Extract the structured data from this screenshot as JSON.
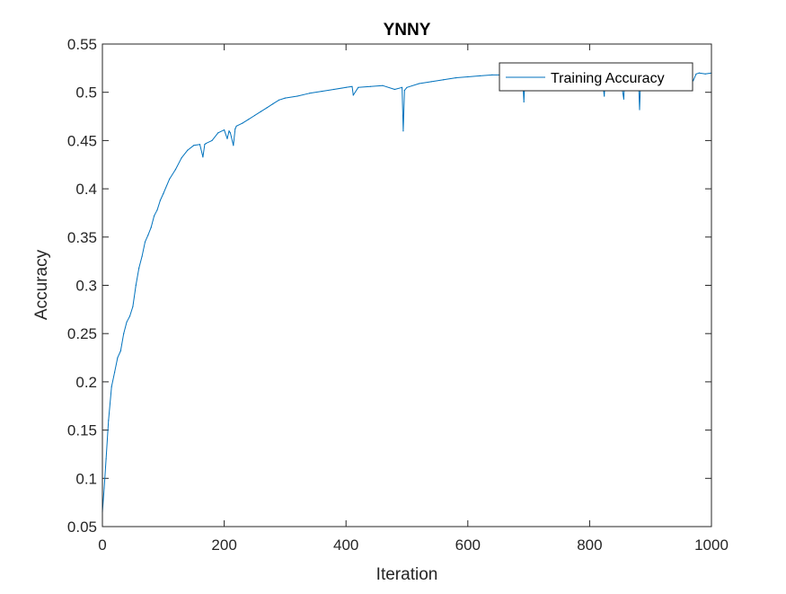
{
  "chart_data": {
    "type": "line",
    "title": "YNNY",
    "xlabel": "Iteration",
    "ylabel": "Accuracy",
    "xlim": [
      0,
      1000
    ],
    "ylim": [
      0.05,
      0.55
    ],
    "xticks": [
      0,
      200,
      400,
      600,
      800,
      1000
    ],
    "xtick_labels": [
      "0",
      "200",
      "400",
      "600",
      "800",
      "1000"
    ],
    "yticks": [
      0.05,
      0.1,
      0.15,
      0.2,
      0.25,
      0.3,
      0.35,
      0.4,
      0.45,
      0.5,
      0.55
    ],
    "ytick_labels": [
      "0.05",
      "0.1",
      "0.15",
      "0.2",
      "0.25",
      "0.3",
      "0.35",
      "0.4",
      "0.45",
      "0.5",
      "0.55"
    ],
    "grid": false,
    "legend_position": "top-right",
    "series": [
      {
        "name": "Training Accuracy",
        "color": "#0072BD",
        "x": [
          0,
          3,
          6,
          10,
          15,
          20,
          25,
          30,
          35,
          40,
          45,
          50,
          55,
          60,
          65,
          70,
          75,
          80,
          85,
          90,
          95,
          100,
          110,
          120,
          130,
          140,
          150,
          160,
          165,
          168,
          170,
          180,
          190,
          200,
          205,
          208,
          210,
          215,
          218,
          220,
          230,
          240,
          250,
          260,
          270,
          280,
          290,
          300,
          320,
          340,
          360,
          380,
          400,
          410,
          412,
          420,
          440,
          460,
          480,
          492,
          494,
          496,
          500,
          520,
          540,
          560,
          580,
          600,
          620,
          640,
          660,
          680,
          690,
          692,
          694,
          700,
          720,
          740,
          760,
          780,
          800,
          820,
          824,
          826,
          830,
          850,
          856,
          858,
          860,
          870,
          880,
          882,
          884,
          886,
          890,
          900,
          920,
          940,
          960,
          970,
          975,
          980,
          990,
          1000
        ],
        "values": [
          0.065,
          0.09,
          0.12,
          0.16,
          0.195,
          0.21,
          0.225,
          0.232,
          0.25,
          0.262,
          0.268,
          0.278,
          0.3,
          0.318,
          0.33,
          0.345,
          0.352,
          0.36,
          0.372,
          0.378,
          0.388,
          0.395,
          0.41,
          0.42,
          0.432,
          0.44,
          0.445,
          0.446,
          0.433,
          0.446,
          0.447,
          0.45,
          0.458,
          0.461,
          0.452,
          0.46,
          0.458,
          0.445,
          0.462,
          0.465,
          0.468,
          0.472,
          0.476,
          0.48,
          0.484,
          0.488,
          0.492,
          0.494,
          0.496,
          0.499,
          0.501,
          0.503,
          0.505,
          0.506,
          0.497,
          0.505,
          0.506,
          0.507,
          0.503,
          0.505,
          0.46,
          0.502,
          0.505,
          0.509,
          0.511,
          0.513,
          0.515,
          0.516,
          0.517,
          0.518,
          0.518,
          0.518,
          0.518,
          0.49,
          0.517,
          0.518,
          0.518,
          0.519,
          0.518,
          0.518,
          0.519,
          0.518,
          0.496,
          0.518,
          0.518,
          0.518,
          0.493,
          0.518,
          0.519,
          0.518,
          0.518,
          0.482,
          0.519,
          0.518,
          0.518,
          0.519,
          0.518,
          0.519,
          0.518,
          0.512,
          0.519,
          0.52,
          0.519,
          0.52
        ]
      }
    ]
  }
}
